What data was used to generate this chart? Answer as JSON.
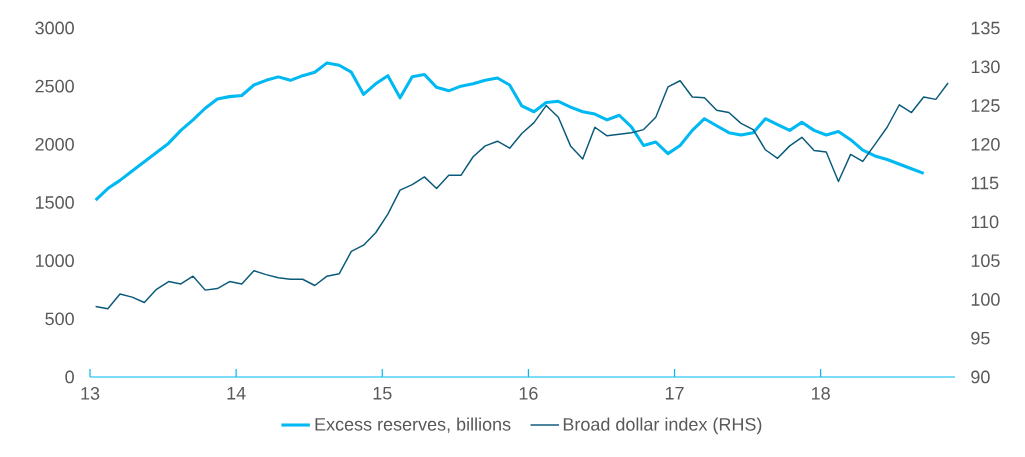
{
  "chart_data": {
    "type": "line",
    "x": [
      "2013-01-15",
      "2013-02-15",
      "2013-03-15",
      "2013-04-15",
      "2013-05-15",
      "2013-06-15",
      "2013-07-15",
      "2013-08-15",
      "2013-09-15",
      "2013-10-15",
      "2013-11-15",
      "2013-12-15",
      "2014-01-15",
      "2014-02-15",
      "2014-03-15",
      "2014-04-15",
      "2014-05-15",
      "2014-06-15",
      "2014-07-15",
      "2014-08-15",
      "2014-09-15",
      "2014-10-15",
      "2014-11-15",
      "2014-12-15",
      "2015-01-15",
      "2015-02-15",
      "2015-03-15",
      "2015-04-15",
      "2015-05-15",
      "2015-06-15",
      "2015-07-15",
      "2015-08-15",
      "2015-09-15",
      "2015-10-15",
      "2015-11-15",
      "2015-12-15",
      "2016-01-15",
      "2016-02-15",
      "2016-03-15",
      "2016-04-15",
      "2016-05-15",
      "2016-06-15",
      "2016-07-15",
      "2016-08-15",
      "2016-09-15",
      "2016-10-15",
      "2016-11-15",
      "2016-12-15",
      "2017-01-15",
      "2017-02-15",
      "2017-03-15",
      "2017-04-15",
      "2017-05-15",
      "2017-06-15",
      "2017-07-15",
      "2017-08-15",
      "2017-09-15",
      "2017-10-15",
      "2017-11-15",
      "2017-12-15",
      "2018-01-15",
      "2018-02-15",
      "2018-03-15",
      "2018-04-15",
      "2018-05-15",
      "2018-06-15",
      "2018-07-15",
      "2018-08-15",
      "2018-09-15",
      "2018-10-15",
      "2018-11-15"
    ],
    "series": [
      {
        "name": "Excess reserves, billions",
        "color": "#00b9f2",
        "values": [
          1520,
          1620,
          1690,
          1770,
          1850,
          1930,
          2010,
          2120,
          2210,
          2310,
          2390,
          2410,
          2420,
          2510,
          2550,
          2580,
          2550,
          2590,
          2620,
          2700,
          2680,
          2620,
          2430,
          2520,
          2590,
          2400,
          2580,
          2600,
          2490,
          2460,
          2500,
          2520,
          2550,
          2570,
          2510,
          2330,
          2280,
          2360,
          2370,
          2320,
          2280,
          2260,
          2210,
          2250,
          2150,
          1990,
          2020,
          1920,
          1990,
          2120,
          2220,
          2160,
          2100,
          2080,
          2100,
          2220,
          2170,
          2120,
          2190,
          2120,
          2080,
          2110,
          2040,
          1950,
          1900,
          1870,
          1830,
          1790,
          1750,
          null,
          null
        ]
      },
      {
        "name": "Broad dollar index (RHS)",
        "color": "#0a5a7a",
        "axis": "y2",
        "values": [
          99.1,
          98.8,
          100.7,
          100.3,
          99.6,
          101.3,
          102.3,
          102.0,
          103.0,
          101.2,
          101.4,
          102.3,
          102.0,
          103.7,
          103.2,
          102.8,
          102.6,
          102.6,
          101.8,
          103.0,
          103.3,
          106.2,
          107.0,
          108.6,
          111.0,
          114.1,
          114.8,
          115.8,
          114.3,
          116.0,
          116.0,
          118.4,
          119.8,
          120.4,
          119.5,
          121.4,
          122.8,
          125.0,
          123.5,
          119.8,
          118.1,
          122.2,
          121.1,
          121.3,
          121.5,
          121.9,
          123.5,
          127.4,
          128.2,
          126.1,
          126.0,
          124.4,
          124.1,
          122.7,
          121.9,
          119.3,
          118.2,
          119.8,
          120.9,
          119.2,
          119.0,
          115.2,
          118.7,
          117.8,
          120.0,
          122.2,
          125.1,
          124.1,
          126.1,
          125.8,
          127.9
        ]
      }
    ],
    "xlim": [
      "2013-01-01",
      "2018-12-02"
    ],
    "xticks": [
      {
        "value": "2013",
        "label": "13"
      },
      {
        "value": "2014",
        "label": "14"
      },
      {
        "value": "2015",
        "label": "15"
      },
      {
        "value": "2016",
        "label": "16"
      },
      {
        "value": "2017",
        "label": "17"
      },
      {
        "value": "2018",
        "label": "18"
      }
    ],
    "ylim": [
      0,
      3000
    ],
    "yticks": [
      0,
      500,
      1000,
      1500,
      2000,
      2500,
      3000
    ],
    "y2lim": [
      90,
      135
    ],
    "y2ticks": [
      90,
      95,
      100,
      105,
      110,
      115,
      120,
      125,
      130,
      135
    ],
    "grid": false,
    "legend": "bottom",
    "marker": "none",
    "line_style": "solid"
  }
}
